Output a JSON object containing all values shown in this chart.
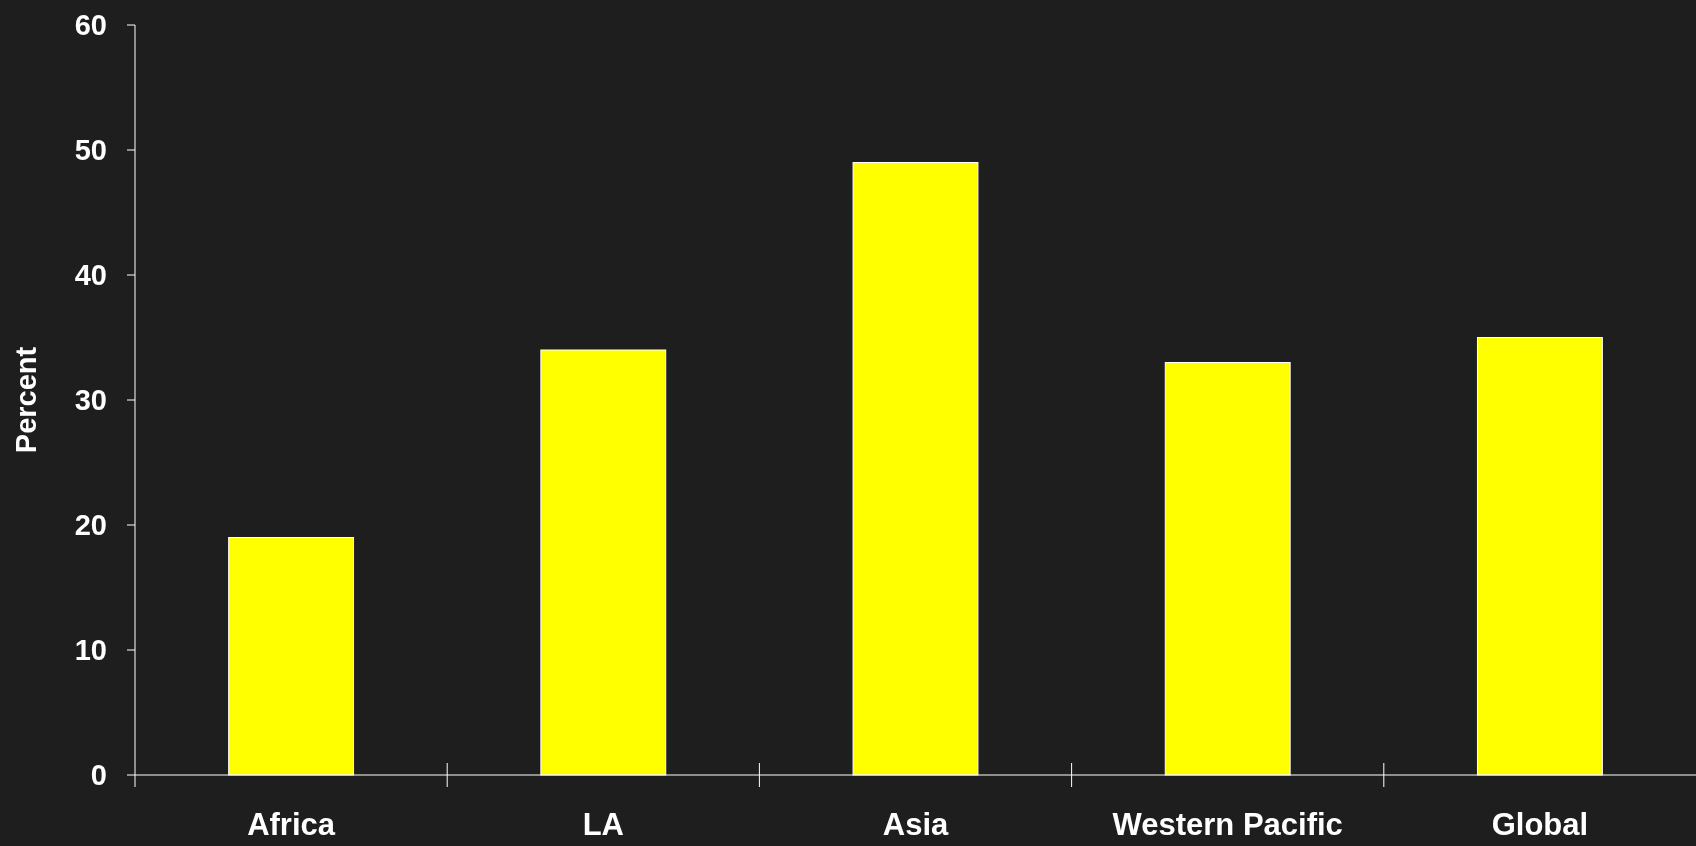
{
  "chart_data": {
    "type": "bar",
    "ylabel": "Percent",
    "categories": [
      "Africa",
      "LA",
      "Asia",
      "Western Pacific",
      "Global"
    ],
    "values": [
      19,
      34,
      49,
      33,
      35
    ],
    "color": "#ffff00",
    "ylim": [
      0,
      60
    ],
    "yticks": [
      0,
      10,
      20,
      30,
      40,
      50,
      60
    ],
    "grid": false
  }
}
